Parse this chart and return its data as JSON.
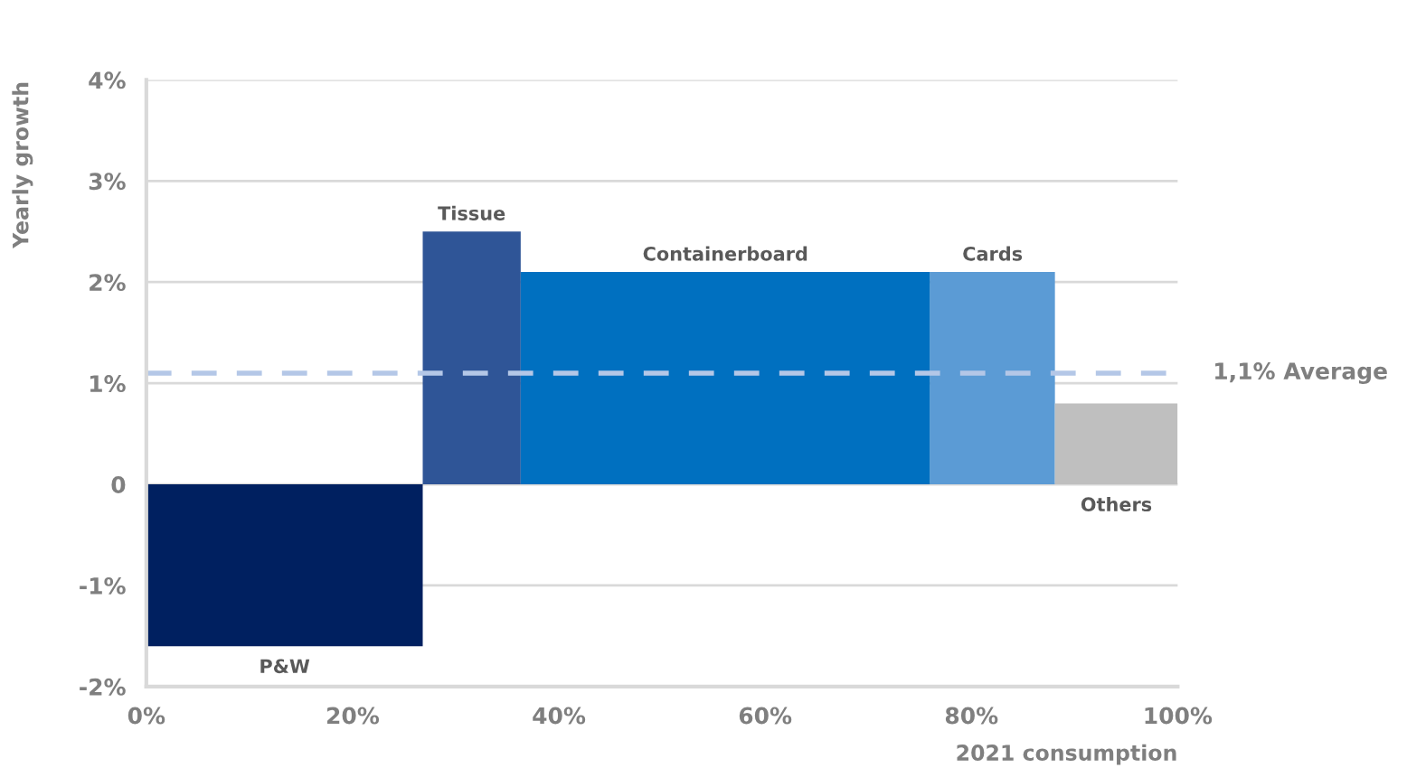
{
  "chart_data": {
    "type": "bar",
    "xlabel": "2021 consumption",
    "ylabel": "Yearly growth",
    "series": [
      {
        "name": "P&W",
        "color": "#002060",
        "x": [
          13.4
        ],
        "values": [
          -1.6
        ]
      },
      {
        "name": "Tissue",
        "color": "#2f5597",
        "x": [
          31.55
        ],
        "values": [
          2.5
        ]
      },
      {
        "name": "Containerboard",
        "color": "#0070c0",
        "x": [
          56.15
        ],
        "values": [
          2.1
        ]
      },
      {
        "name": "Cards",
        "color": "#5b9bd5",
        "x": [
          82.05
        ],
        "values": [
          2.1
        ]
      },
      {
        "name": "Others",
        "color": "#bfbfbf",
        "x": [
          94.05
        ],
        "values": [
          0.8
        ]
      }
    ],
    "xlim": [
      0,
      100
    ],
    "xticks": [
      {
        "value": 0,
        "label": "0%"
      },
      {
        "value": 20,
        "label": "20%"
      },
      {
        "value": 40,
        "label": "40%"
      },
      {
        "value": 60,
        "label": "60%"
      },
      {
        "value": 80,
        "label": "80%"
      },
      {
        "value": 100,
        "label": "100%"
      }
    ],
    "ylim": [
      -2,
      4
    ],
    "yticks": [
      {
        "value": -2,
        "label": "-2%"
      },
      {
        "value": -1,
        "label": "-1%"
      },
      0,
      {
        "value": 1,
        "label": "1%"
      },
      {
        "value": 2,
        "label": "2%"
      },
      {
        "value": 3,
        "label": "3%"
      },
      {
        "value": 4,
        "label": "4%"
      }
    ],
    "ref_lines": [
      {
        "axis": "y",
        "value": 1.1,
        "label": "1,1% Average",
        "color": "#b4c7e7",
        "line_style": "dashed"
      }
    ],
    "grid": "y"
  }
}
